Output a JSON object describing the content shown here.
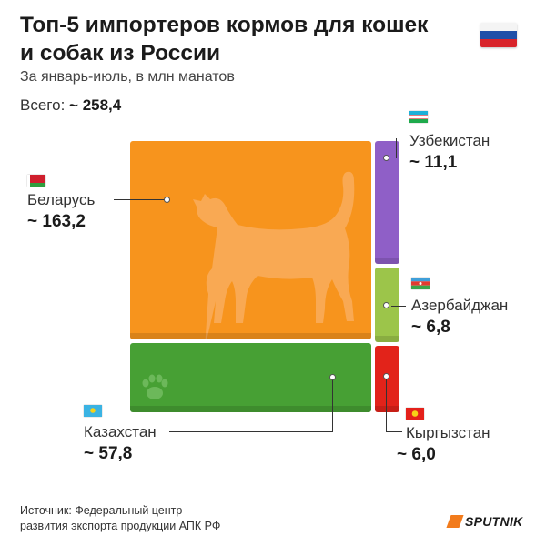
{
  "header": {
    "title": "Топ-5 импортеров кормов для кошек и собак из России",
    "subtitle": "За январь-июль, в млн манатов",
    "total_label": "Всего:",
    "total_value": "~ 258,4"
  },
  "chart_data": {
    "type": "treemap",
    "title": "Топ-5 импортеров кормов для кошек и собак из России",
    "subtitle": "За январь-июль, в млн манатов",
    "unit": "млн манатов",
    "total": 258.4,
    "items": [
      {
        "country": "Беларусь",
        "value": 163.2,
        "label": "~ 163,2",
        "color": "#f7941d"
      },
      {
        "country": "Казахстан",
        "value": 57.8,
        "label": "~ 57,8",
        "color": "#47a034"
      },
      {
        "country": "Узбекистан",
        "value": 11.1,
        "label": "~ 11,1",
        "color": "#8f5fc7"
      },
      {
        "country": "Азербайджан",
        "value": 6.8,
        "label": "~ 6,8",
        "color": "#9cc54a"
      },
      {
        "country": "Кыргызстан",
        "value": 6.0,
        "label": "~ 6,0",
        "color": "#e2231a"
      }
    ]
  },
  "footer": {
    "source_line1": "Источник: Федеральный центр",
    "source_line2": "развития экспорта продукции АПК РФ",
    "logo_text": "SPUTNIK"
  },
  "icons": {
    "country_flag": "russia-flag-icon",
    "cat": "cat-silhouette-icon",
    "paw": "paw-print-icon"
  }
}
